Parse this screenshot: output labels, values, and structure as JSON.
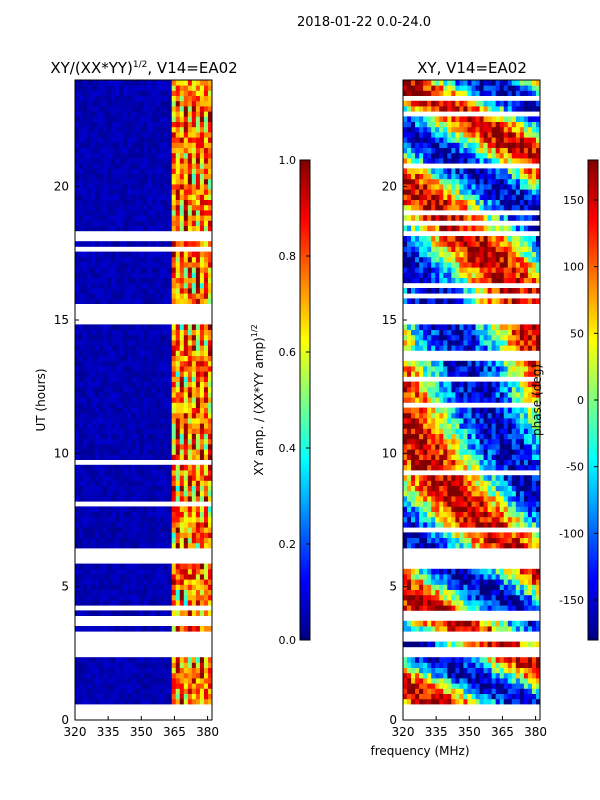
{
  "figure_title": "2018-01-22 0.0-24.0",
  "colors": {
    "jet": [
      "#00007f",
      "#0000ff",
      "#007fff",
      "#00ffff",
      "#7fff7f",
      "#ffff00",
      "#ff7f00",
      "#ff0000",
      "#7f0000"
    ],
    "gap": "#ffffff"
  },
  "chart_data": [
    {
      "type": "heatmap",
      "title": "XY/(XX*YY)1/2, V14=EA02",
      "title_main": "XY/(XX*YY)",
      "title_sup": "1/2",
      "title_rest": ", V14=EA02",
      "xlabel": "",
      "ylabel": "UT (hours)",
      "xlim": [
        320,
        382
      ],
      "ylim": [
        0,
        24
      ],
      "xticks": [
        320,
        335,
        350,
        365,
        380
      ],
      "yticks": [
        0,
        5,
        10,
        15,
        20
      ],
      "quantity": "amplitude",
      "colorbar": {
        "label": "XY amp. / (XX*YY amp)1/2",
        "label_main": "XY amp. / (XX*YY amp)",
        "label_sup": "1/2",
        "range": [
          0.0,
          1.0
        ],
        "ticks": [
          "0.0",
          "0.2",
          "0.4",
          "0.6",
          "0.8",
          "1.0"
        ],
        "tick_values": [
          0.0,
          0.2,
          0.4,
          0.6,
          0.8,
          1.0
        ]
      },
      "data_start_hour": 0.6,
      "data_gaps_hours": [
        [
          15.0,
          15.5
        ],
        [
          18.1,
          18.2
        ],
        [
          6.0,
          6.3
        ],
        [
          2.5,
          2.6
        ],
        [
          3.1,
          3.2
        ]
      ]
    },
    {
      "type": "heatmap",
      "title": "XY, V14=EA02",
      "xlabel": "frequency (MHz)",
      "ylabel": "",
      "xlim": [
        320,
        382
      ],
      "ylim": [
        0,
        24
      ],
      "xticks": [
        320,
        335,
        350,
        365,
        380
      ],
      "yticks": [
        0,
        5,
        10,
        15,
        20
      ],
      "quantity": "phase",
      "colorbar": {
        "label": "phase (deg)",
        "range": [
          -180,
          180
        ],
        "ticks": [
          "-150",
          "-100",
          "-50",
          "0",
          "50",
          "100",
          "150"
        ],
        "tick_values": [
          -150,
          -100,
          -50,
          0,
          50,
          100,
          150
        ]
      },
      "data_start_hour": 0.6,
      "data_gaps_hours": [
        [
          15.0,
          15.5
        ],
        [
          6.0,
          6.3
        ],
        [
          2.5,
          2.6
        ],
        [
          3.1,
          3.2
        ]
      ]
    }
  ]
}
